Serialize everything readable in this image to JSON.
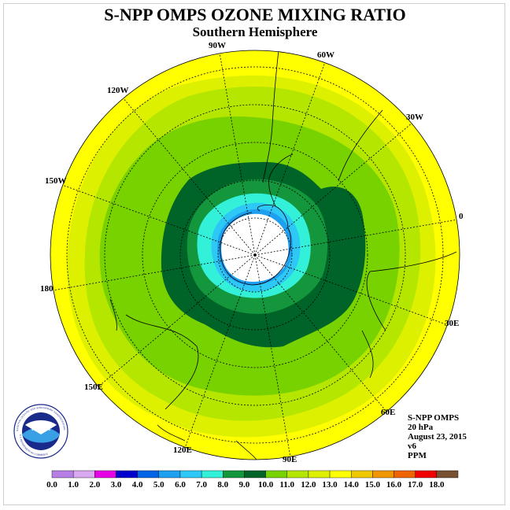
{
  "title": "S-NPP OMPS OZONE MIXING RATIO",
  "subtitle": "Southern Hemisphere",
  "info": {
    "instrument": "S-NPP OMPS",
    "level": "20 hPa",
    "date": "August 23, 2015",
    "version": "v6",
    "units": "PPM"
  },
  "longitude_labels": [
    "90W",
    "60W",
    "30W",
    "0",
    "30E",
    "60E",
    "90E",
    "120E",
    "150E",
    "180",
    "150W",
    "120W"
  ],
  "colorbar": {
    "ticks": [
      "0.0",
      "1.0",
      "2.0",
      "3.0",
      "4.0",
      "5.0",
      "6.0",
      "7.0",
      "8.0",
      "9.0",
      "10.0",
      "11.0",
      "12.0",
      "13.0",
      "14.0",
      "15.0",
      "16.0",
      "17.0",
      "18.0"
    ],
    "colors": [
      "#b77fe6",
      "#d8a8f0",
      "#e600e6",
      "#0000cc",
      "#0064e6",
      "#1ea0f0",
      "#2dc8f5",
      "#33f0d8",
      "#14963c",
      "#006428",
      "#78d200",
      "#b4e600",
      "#dcf000",
      "#ffff00",
      "#f0c800",
      "#f09600",
      "#f06400",
      "#f00000",
      "#785032"
    ]
  },
  "logo": {
    "text": "NOAA",
    "ring_text": "NATIONAL OCEANIC AND ATMOSPHERIC ADMINISTRATION",
    "ring_text_bottom": "U.S. DEPARTMENT OF COMMERCE"
  }
}
